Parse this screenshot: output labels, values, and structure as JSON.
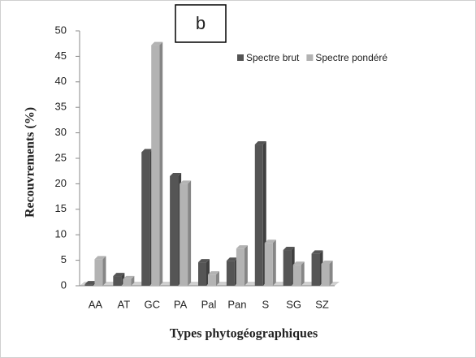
{
  "chart_data": {
    "type": "bar",
    "annotation": "b",
    "ylabel": "Recouvrements (%)",
    "xlabel": "Types phytogéographiques",
    "categories": [
      "AA",
      "AT",
      "GC",
      "PA",
      "Pal",
      "Pan",
      "S",
      "SG",
      "SZ"
    ],
    "series": [
      {
        "name": "Spectre brut",
        "color": "#555555",
        "values": [
          0.3,
          1.9,
          26.2,
          21.5,
          4.6,
          4.9,
          27.7,
          7,
          6.3
        ]
      },
      {
        "name": "Spectre pondéré",
        "color": "#b3b3b3",
        "values": [
          5.2,
          1.3,
          47.2,
          20,
          2.2,
          7.3,
          8.4,
          4.1,
          4.3
        ]
      }
    ],
    "ylim": [
      0,
      50
    ],
    "yticks": [
      0,
      5,
      10,
      15,
      20,
      25,
      30,
      35,
      40,
      45,
      50
    ],
    "legend": "top-right"
  }
}
